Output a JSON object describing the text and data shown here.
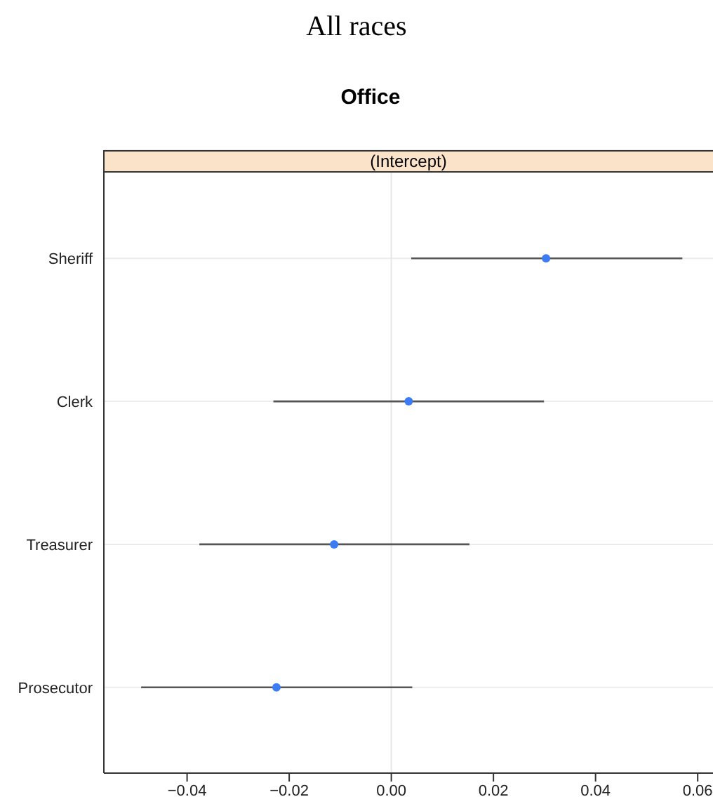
{
  "chart_data": {
    "type": "scatter",
    "title": "All races",
    "subtitle": "Office",
    "orientation": "horizontal",
    "annotations": [
      "(Intercept)"
    ],
    "categories": [
      "Sheriff",
      "Clerk",
      "Treasurer",
      "Prosecutor"
    ],
    "values": [
      0.0303,
      0.0034,
      -0.0112,
      -0.0225
    ],
    "errors": [
      [
        0.0039,
        0.057
      ],
      [
        -0.0231,
        0.0299
      ],
      [
        -0.0376,
        0.0153
      ],
      [
        -0.049,
        0.0041
      ]
    ],
    "color": "#3b7cf5",
    "marker": "circle",
    "xlim": [
      -0.0563,
      0.063
    ],
    "xticks": [
      {
        "value": -0.04,
        "label": "−0.04"
      },
      {
        "value": -0.02,
        "label": "−0.02"
      },
      {
        "value": 0,
        "label": "0.00"
      },
      {
        "value": 0.02,
        "label": "0.02"
      },
      {
        "value": 0.04,
        "label": "0.04"
      },
      {
        "value": 0.06,
        "label": "0.06"
      }
    ],
    "grid": "y",
    "ref_lines": [
      {
        "axis": "x",
        "value": 0,
        "color": "#e6e6e6"
      }
    ]
  }
}
